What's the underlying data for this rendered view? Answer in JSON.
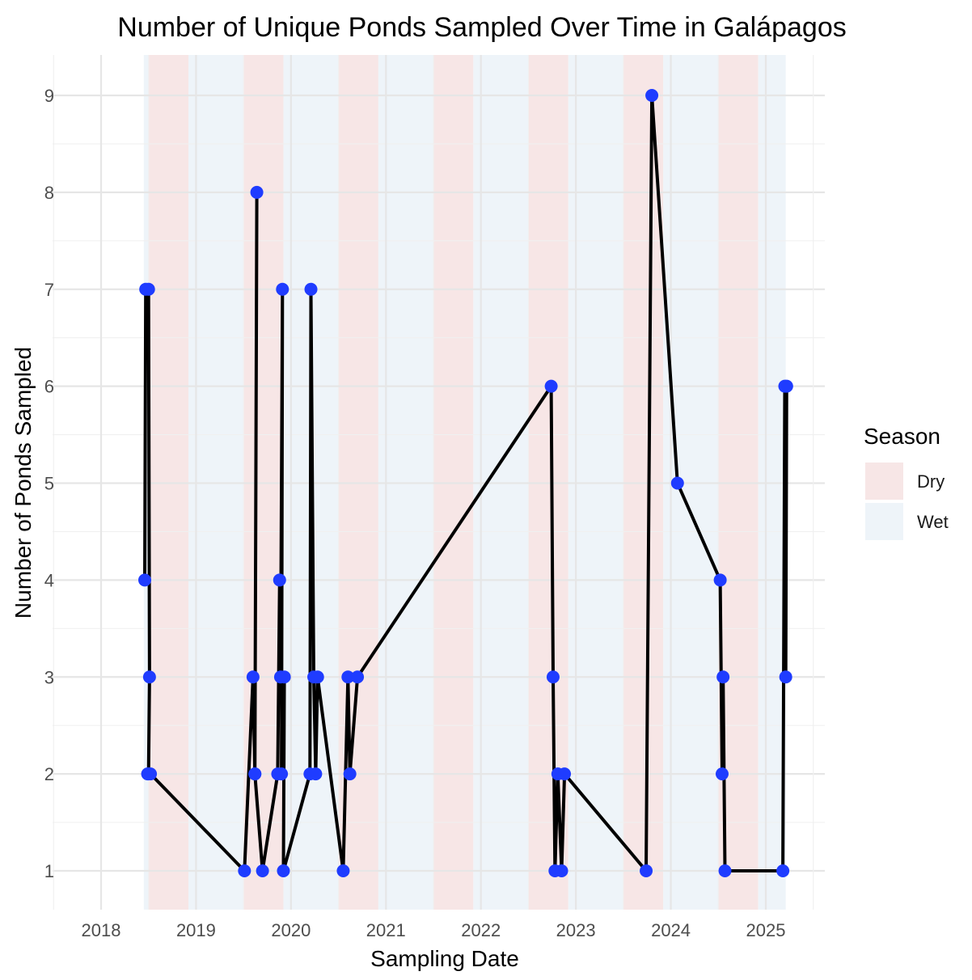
{
  "chart_data": {
    "type": "line",
    "title": "Number of Unique Ponds Sampled Over Time in Galápagos",
    "xlabel": "Sampling Date",
    "ylabel": "Number of Ponds Sampled",
    "x_ticks": [
      "2018",
      "2019",
      "2020",
      "2021",
      "2022",
      "2023",
      "2024",
      "2025"
    ],
    "y_ticks": [
      1,
      2,
      3,
      4,
      5,
      6,
      7,
      8,
      9
    ],
    "xlim": [
      2017.7,
      2025.8
    ],
    "ylim": [
      0.6,
      9.45
    ],
    "grid": true,
    "legend": {
      "title": "Season",
      "placement": "right",
      "entries": [
        {
          "name": "Dry",
          "color": "#f7e6e6"
        },
        {
          "name": "Wet",
          "color": "#eef4f9"
        }
      ]
    },
    "season_bands": [
      {
        "season": "Wet",
        "start": 2018.45,
        "end": 2018.5
      },
      {
        "season": "Dry",
        "start": 2018.5,
        "end": 2018.92
      },
      {
        "season": "Wet",
        "start": 2018.92,
        "end": 2019.5
      },
      {
        "season": "Dry",
        "start": 2019.5,
        "end": 2019.92
      },
      {
        "season": "Wet",
        "start": 2019.92,
        "end": 2020.5
      },
      {
        "season": "Dry",
        "start": 2020.5,
        "end": 2020.92
      },
      {
        "season": "Wet",
        "start": 2020.92,
        "end": 2021.5
      },
      {
        "season": "Dry",
        "start": 2021.5,
        "end": 2021.92
      },
      {
        "season": "Wet",
        "start": 2021.92,
        "end": 2022.5
      },
      {
        "season": "Dry",
        "start": 2022.5,
        "end": 2022.92
      },
      {
        "season": "Wet",
        "start": 2022.92,
        "end": 2023.5
      },
      {
        "season": "Dry",
        "start": 2023.5,
        "end": 2023.92
      },
      {
        "season": "Wet",
        "start": 2023.92,
        "end": 2024.5
      },
      {
        "season": "Dry",
        "start": 2024.5,
        "end": 2024.92
      },
      {
        "season": "Wet",
        "start": 2024.92,
        "end": 2025.21
      }
    ],
    "series": [
      {
        "line_color": "#000000",
        "point_color": "#1f3cff",
        "x": [
          2018.46,
          2018.47,
          2018.5,
          2018.51,
          2018.5,
          2018.49,
          2018.52,
          2019.51,
          2019.6,
          2019.62,
          2019.64,
          2019.62,
          2019.7,
          2019.86,
          2019.88,
          2019.89,
          2019.91,
          2019.9,
          2019.93,
          2019.92,
          2020.2,
          2020.21,
          2020.24,
          2020.26,
          2020.28,
          2020.55,
          2020.6,
          2020.62,
          2020.7,
          2022.74,
          2022.76,
          2022.78,
          2022.81,
          2022.85,
          2022.88,
          2023.74,
          2023.8,
          2024.07,
          2024.52,
          2024.54,
          2024.55,
          2024.57,
          2025.18,
          2025.2,
          2025.22,
          2025.21
        ],
        "y": [
          4,
          7,
          7,
          3,
          2,
          2,
          2,
          1,
          3,
          2,
          8,
          2,
          1,
          2,
          4,
          3,
          7,
          2,
          3,
          1,
          2,
          7,
          3,
          2,
          3,
          1,
          3,
          2,
          3,
          6,
          3,
          1,
          2,
          1,
          2,
          1,
          9,
          5,
          4,
          2,
          3,
          1,
          1,
          6,
          6,
          3
        ]
      }
    ]
  }
}
